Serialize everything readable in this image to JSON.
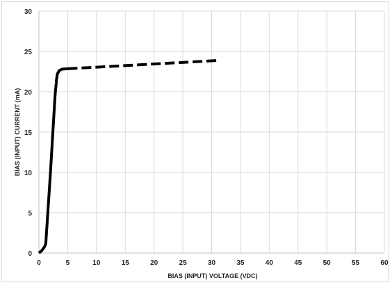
{
  "chart_data": {
    "type": "line",
    "xlabel": "BIAS (INPUT) VOLTAGE (VDC)",
    "ylabel": "BIAS (INPUT) CURRENT (mA)",
    "xlim": [
      0,
      60
    ],
    "ylim": [
      0,
      30
    ],
    "x_ticks": [
      "0",
      "5",
      "10",
      "15",
      "20",
      "25",
      "30",
      "35",
      "40",
      "45",
      "50",
      "55",
      "60"
    ],
    "y_ticks": [
      "0",
      "5",
      "10",
      "15",
      "20",
      "25",
      "30"
    ],
    "grid": true,
    "legend": "none",
    "series": [
      {
        "style": "solid",
        "color": "#000000",
        "x": [
          0,
          0.5,
          1.0,
          1.2,
          2.0,
          2.8,
          3.0,
          3.1
        ],
        "y": [
          0,
          0.3,
          0.8,
          1.2,
          10.0,
          19.5,
          21.0,
          21.2
        ]
      },
      {
        "style": "solid",
        "color": "#000000",
        "x": [
          3.0,
          3.2,
          3.5,
          4.0,
          5.0
        ],
        "y": [
          21.2,
          22.2,
          22.6,
          22.8,
          22.85
        ]
      },
      {
        "style": "dashed",
        "color": "#000000",
        "x": [
          5.0,
          31.5
        ],
        "y": [
          22.85,
          23.9
        ]
      }
    ]
  }
}
